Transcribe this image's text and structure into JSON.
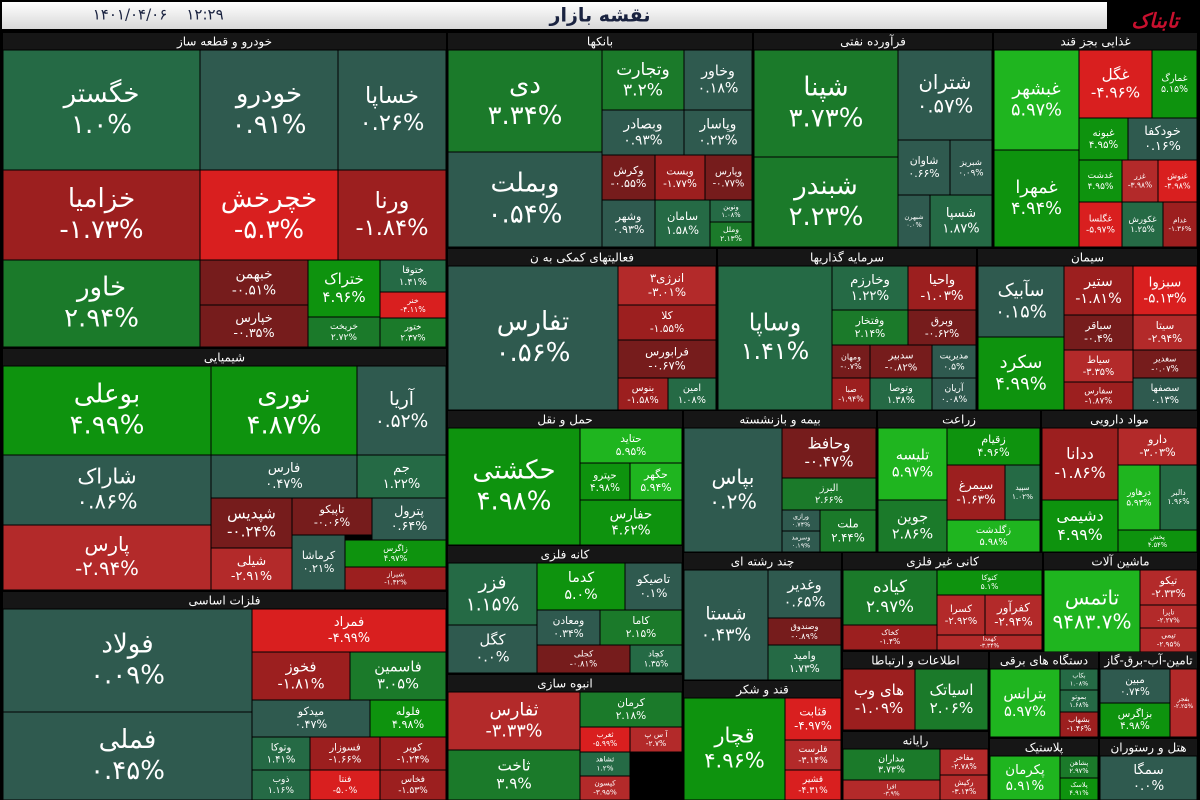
{
  "chart_data": {
    "type": "treemap",
    "title": "نقشه بازار",
    "date": "۱۴۰۱/۰۴/۰۶",
    "time": "۱۲:۲۹",
    "logo": "تابناک",
    "groups": [
      {
        "name": "خودرو و قطعه ساز",
        "categories": [
          "خگستر",
          "خودرو",
          "خساپا",
          "خزامیا",
          "خچرخش",
          "ورنا",
          "خاور",
          "خبهمن",
          "خپارس",
          "ختراک",
          "خریخت",
          "ختوقا",
          "خنر",
          "ختور"
        ],
        "values": [
          1.0,
          0.91,
          0.26,
          -1.73,
          -5.3,
          -1.84,
          2.94,
          -0.51,
          -0.35,
          4.96,
          2.72,
          1.41,
          -4.11,
          2.37
        ],
        "value_labels": [
          "۱.۰%",
          "۰.۹۱%",
          "۰.۲۶%",
          "-۱.۷۳%",
          "-۵.۳%",
          "-۱.۸۴%",
          "۲.۹۴%",
          "-۰.۵۱%",
          "-۰.۳۵%",
          "۴.۹۶%",
          "۲.۷۲%",
          "۱.۴۱%",
          "-۴.۱۱%",
          "۲.۳۷%"
        ]
      },
      {
        "name": "شیمیایی",
        "categories": [
          "بوعلی",
          "نوری",
          "آریا",
          "شاراک",
          "پارس",
          "فارس",
          "جم",
          "شپدیس",
          "تاپیکو",
          "پترول",
          "کرماشا",
          "شیلی",
          "زاگرس",
          "شیراز"
        ],
        "values": [
          4.99,
          4.87,
          0.52,
          0.86,
          -2.94,
          0.47,
          1.22,
          -0.24,
          -0.06,
          0.64,
          0.21,
          -2.91,
          4.97,
          -1.42
        ],
        "value_labels": [
          "۴.۹۹%",
          "۴.۸۷%",
          "۰.۵۲%",
          "۰.۸۶%",
          "-۲.۹۴%",
          "۰.۴۷%",
          "۱.۲۲%",
          "-۰.۲۴%",
          "-۰.۰۶%",
          "۰.۶۴%",
          "۰.۲۱%",
          "-۲.۹۱%",
          "۴.۹۷%",
          "-۱.۴۲%"
        ]
      },
      {
        "name": "فلزات اساسی",
        "categories": [
          "فولاد",
          "فملی",
          "فمراد",
          "فخوز",
          "فاسمین",
          "میدکو",
          "فلوله",
          "وتوکا",
          "فسوزار",
          "کویر",
          "ذوب",
          "فنتا",
          "فخاس"
        ],
        "values": [
          0.09,
          0.45,
          -4.99,
          -1.81,
          3.05,
          0.47,
          4.98,
          1.41,
          -1.66,
          -1.24,
          1.16,
          -5.0,
          -1.53
        ],
        "value_labels": [
          "۰.۰۹%",
          "۰.۴۵%",
          "-۴.۹۹%",
          "-۱.۸۱%",
          "۳.۰۵%",
          "۰.۴۷%",
          "۴.۹۸%",
          "۱.۴۱%",
          "-۱.۶۶%",
          "-۱.۲۴%",
          "۱.۱۶%",
          "-۵.۰%",
          "-۱.۵۳%"
        ]
      },
      {
        "name": "بانکها",
        "categories": [
          "دی",
          "وبملت",
          "وتجارت",
          "وخاور",
          "وبصادر",
          "وپاسار",
          "وکرش",
          "وبست",
          "وپارس",
          "وشهر",
          "سامان",
          "ونوین",
          "وملل"
        ],
        "values": [
          3.34,
          0.54,
          3.2,
          0.18,
          0.93,
          0.22,
          -0.55,
          -1.77,
          -0.77,
          0.93,
          1.58,
          1.08,
          2.13
        ],
        "value_labels": [
          "۳.۳۴%",
          "۰.۵۴%",
          "۳.۲%",
          "۰.۱۸%",
          "۰.۹۳%",
          "۰.۲۲%",
          "-۰.۵۵%",
          "-۱.۷۷%",
          "-۰.۷۷%",
          "۰.۹۳%",
          "۱.۵۸%",
          "۱.۰۸%",
          "۲.۱۳%"
        ]
      },
      {
        "name": "فرآورده نفتی",
        "categories": [
          "شپنا",
          "شبندر",
          "شتران",
          "شاوان",
          "شبریز",
          "شبهرن",
          "شسپا"
        ],
        "values": [
          3.73,
          2.23,
          0.57,
          0.66,
          0.09,
          0.0,
          1.87
        ],
        "value_labels": [
          "۳.۷۳%",
          "۲.۲۳%",
          "۰.۵۷%",
          "۰.۶۶%",
          "۰.۰۹%",
          "۰.۰%",
          "۱.۸۷%"
        ]
      },
      {
        "name": "غذایی بجز قند",
        "categories": [
          "غبشهر",
          "غمهرا",
          "غگل",
          "غمارگ",
          "غبونه",
          "خودکفا",
          "غدشت",
          "غزر",
          "غنوش",
          "غگلسا",
          "غکورش",
          "غدام"
        ],
        "values": [
          5.97,
          4.94,
          -4.96,
          5.15,
          4.95,
          0.16,
          4.95,
          -3.98,
          -4.98,
          -5.97,
          1.25,
          -1.36
        ],
        "value_labels": [
          "۵.۹۷%",
          "۴.۹۴%",
          "-۴.۹۶%",
          "۵.۱۵%",
          "۴.۹۵%",
          "۰.۱۶%",
          "۴.۹۵%",
          "-۳.۹۸%",
          "-۴.۹۸%",
          "-۵.۹۷%",
          "۱.۲۵%",
          "-۱.۳۶%"
        ]
      },
      {
        "name": "فعالیتهای کمکی به ن",
        "categories": [
          "تفارس",
          "انرژی۳",
          "کلا",
          "فرابورس",
          "بنوس",
          "امین"
        ],
        "values": [
          0.56,
          -3.01,
          -1.55,
          -0.67,
          -1.58,
          1.08
        ],
        "value_labels": [
          "۰.۵۶%",
          "-۳.۰۱%",
          "-۱.۵۵%",
          "-۰.۶۷%",
          "-۱.۵۸%",
          "۱.۰۸%"
        ]
      },
      {
        "name": "سرمایه گذاریها",
        "categories": [
          "وساپا",
          "وخارزم",
          "واحیا",
          "وفتخار",
          "وبرق",
          "ومهان",
          "سدبیر",
          "مدیریت",
          "صبا",
          "وتوصا",
          "آریان"
        ],
        "values": [
          1.41,
          1.22,
          -1.03,
          2.14,
          -0.62,
          -0.7,
          -0.82,
          0.5,
          -1.94,
          1.38,
          0.08
        ],
        "value_labels": [
          "۱.۴۱%",
          "۱.۲۲%",
          "-۱.۰۳%",
          "۲.۱۴%",
          "-۰.۶۲%",
          "-۰.۷%",
          "-۰.۸۲%",
          "۰.۵%",
          "-۱.۹۴%",
          "۱.۳۸%",
          "۰.۰۸%"
        ]
      },
      {
        "name": "سیمان",
        "categories": [
          "سآبیک",
          "سکرد",
          "ستیر",
          "سبزوا",
          "سباقر",
          "سیتا",
          "سیاط",
          "سغدیر",
          "سفارس",
          "سصفها"
        ],
        "values": [
          0.15,
          4.99,
          -1.81,
          -5.13,
          -0.4,
          -2.94,
          -3.35,
          -0.07,
          -1.87,
          0.13
        ],
        "value_labels": [
          "۰.۱۵%",
          "۴.۹۹%",
          "-۱.۸۱%",
          "-۵.۱۳%",
          "-۰.۴%",
          "-۲.۹۴%",
          "-۳.۳۵%",
          "-۰.۰۷%",
          "-۱.۸۷%",
          "۰.۱۳%"
        ]
      },
      {
        "name": "حمل و نقل",
        "categories": [
          "حکشتی",
          "حتاید",
          "حپترو",
          "حگهر",
          "حفارس"
        ],
        "values": [
          4.98,
          5.95,
          4.98,
          5.94,
          4.62
        ],
        "value_labels": [
          "۴.۹۸%",
          "۵.۹۵%",
          "۴.۹۸%",
          "۵.۹۴%",
          "۴.۶۲%"
        ]
      },
      {
        "name": "بیمه و بازنشسته",
        "categories": [
          "بپاس",
          "وحافظ",
          "البرز",
          "ورازی",
          "وسرمد",
          "ملت"
        ],
        "values": [
          0.2,
          -0.47,
          2.66,
          0.74,
          0.19,
          2.44
        ],
        "value_labels": [
          "۰.۲%",
          "-۰.۴۷%",
          "۲.۶۶%",
          "۰.۷۴%",
          "۰.۱۹%",
          "۲.۴۴%"
        ]
      },
      {
        "name": "زراعت",
        "categories": [
          "تلیسه",
          "جوین",
          "زقیام",
          "سیمرغ",
          "سپید",
          "زگلدشت"
        ],
        "values": [
          5.97,
          2.86,
          4.96,
          -1.63,
          1.02,
          5.98
        ],
        "value_labels": [
          "۵.۹۷%",
          "۲.۸۶%",
          "۴.۹۶%",
          "-۱.۶۳%",
          "۱.۰۲%",
          "۵.۹۸%"
        ]
      },
      {
        "name": "مواد دارویی",
        "categories": [
          "ددانا",
          "دارو",
          "دشیمی",
          "درهاور",
          "دالبر",
          "پخش"
        ],
        "values": [
          -1.86,
          -3.03,
          4.99,
          5.93,
          1.96,
          4.54
        ],
        "value_labels": [
          "-۱.۸۶%",
          "-۳.۰۳%",
          "۴.۹۹%",
          "۵.۹۳%",
          "۱.۹۶%",
          "۴.۵۴%"
        ]
      },
      {
        "name": "کانه فلزی",
        "categories": [
          "فزر",
          "کگل",
          "کدما",
          "تاصیکو",
          "ومعادن",
          "کاما",
          "کجلی",
          "کچاد"
        ],
        "values": [
          1.15,
          0.0,
          5.0,
          0.1,
          0.34,
          2.15,
          -0.81,
          1.35
        ],
        "value_labels": [
          "۱.۱۵%",
          "۰.۰%",
          "۵.۰%",
          "۰.۱%",
          "۰.۳۴%",
          "۲.۱۵%",
          "-۰.۸۱%",
          "۱.۳۵%"
        ]
      },
      {
        "name": "چند رشته ای",
        "categories": [
          "شستا",
          "وغدیر",
          "وصندوق",
          "وامید"
        ],
        "values": [
          0.43,
          0.65,
          -0.89,
          1.73
        ],
        "value_labels": [
          "۰.۴۳%",
          "۰.۶۵%",
          "-۰.۸۹%",
          "۱.۷۳%"
        ]
      },
      {
        "name": "کانی غیر فلزی",
        "categories": [
          "کیاده",
          "کخاک",
          "کتوکا",
          "کسرا",
          "کفرآور",
          "کهمدا"
        ],
        "values": [
          2.97,
          -1.4,
          5.1,
          -2.92,
          -2.94,
          -3.34
        ],
        "value_labels": [
          "۲.۹۷%",
          "-۱.۴%",
          "۵.۱%",
          "-۲.۹۲%",
          "-۲.۹۴%",
          "-۳.۳۴%"
        ]
      },
      {
        "name": "ماشین آلات",
        "categories": [
          "تاتمس",
          "تیکو",
          "تاپرا",
          "تیمی"
        ],
        "values": [
          9483.7,
          -2.33,
          -2.27,
          -2.95
        ],
        "value_labels": [
          "۹۴۸۳.۷%",
          "-۲.۳۳%",
          "-۲.۲۷%",
          "-۲.۹۵%"
        ]
      },
      {
        "name": "اطلاعات و ارتباطا",
        "categories": [
          "های وب",
          "اسیاتک"
        ],
        "values": [
          -1.09,
          2.06
        ],
        "value_labels": [
          "-۱.۰۹%",
          "۲.۰۶%"
        ]
      },
      {
        "name": "رایانه",
        "categories": [
          "مداران",
          "افرا",
          "مفاخر",
          "رکیش"
        ],
        "values": [
          3.73,
          -3.9,
          -2.78,
          -3.14
        ],
        "value_labels": [
          "۳.۷۳%",
          "-۳.۹%",
          "-۲.۷۸%",
          "-۳.۱۴%"
        ]
      },
      {
        "name": "دستگاه های برقی",
        "categories": [
          "بترانس",
          "بکاب",
          "بموتو",
          "بشهاب"
        ],
        "values": [
          5.97,
          1.08,
          1.68,
          -1.46
        ],
        "value_labels": [
          "۵.۹۷%",
          "۱.۰۸%",
          "۱.۶۸%",
          "-۱.۴۶%"
        ]
      },
      {
        "name": "تامین-آب-برق-گاز",
        "categories": [
          "مبین",
          "بزاگرس",
          "بفجر"
        ],
        "values": [
          0.74,
          4.98,
          -2.25
        ],
        "value_labels": [
          "۰.۷۴%",
          "۴.۹۸%",
          "-۲.۲۵%"
        ]
      },
      {
        "name": "پلاستیک",
        "categories": [
          "پکرمان",
          "پشاهن",
          "پلاسک"
        ],
        "values": [
          5.91,
          2.97,
          4.91
        ],
        "value_labels": [
          "۵.۹۱%",
          "۲.۹۷%",
          "۴.۹۱%"
        ]
      },
      {
        "name": "هتل و رستوران",
        "categories": [
          "سمگا"
        ],
        "values": [
          0.0
        ],
        "value_labels": [
          "۰.۰%"
        ]
      },
      {
        "name": "انبوه سازی",
        "categories": [
          "ثفارس",
          "ثاخت",
          "کرمان",
          "ثغرب",
          "آ س پ",
          "ثشاهد",
          "کیسون"
        ],
        "values": [
          -3.33,
          3.9,
          2.18,
          -5.99,
          -2.7,
          1.2,
          -3.95
        ],
        "value_labels": [
          "-۳.۳۳%",
          "۳.۹%",
          "۲.۱۸%",
          "-۵.۹۹%",
          "-۲.۷%",
          "۱.۲%",
          "-۳.۹۵%"
        ]
      },
      {
        "name": "قند و شکر",
        "categories": [
          "قچار",
          "قثابت",
          "قلرست",
          "قشیر"
        ],
        "values": [
          4.96,
          -4.97,
          -3.14,
          -4.31
        ],
        "value_labels": [
          "۴.۹۶%",
          "-۴.۹۷%",
          "-۳.۱۴%",
          "-۴.۳۱%"
        ]
      }
    ]
  }
}
